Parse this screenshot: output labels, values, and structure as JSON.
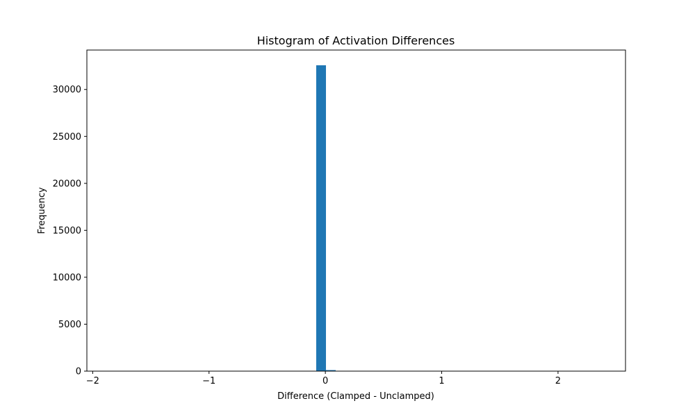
{
  "chart_data": {
    "type": "bar",
    "title": "Histogram of Activation Differences",
    "xlabel": "Difference (Clamped - Unclamped)",
    "ylabel": "Frequency",
    "xlim": [
      -2.05,
      2.58
    ],
    "ylim": [
      0,
      34200
    ],
    "x_ticks": [
      -2,
      -1,
      0,
      1,
      2
    ],
    "x_tick_labels": [
      "−2",
      "−1",
      "0",
      "1",
      "2"
    ],
    "y_ticks": [
      0,
      5000,
      10000,
      15000,
      20000,
      25000,
      30000
    ],
    "y_tick_labels": [
      "0",
      "5000",
      "10000",
      "15000",
      "20000",
      "25000",
      "30000"
    ],
    "bin_width": 0.0837,
    "bins": [
      {
        "left": -0.0785,
        "count": 32580
      },
      {
        "left": 0.0052,
        "count": 110
      }
    ],
    "grid": false,
    "legend": "none",
    "color": "#1f77b4"
  }
}
